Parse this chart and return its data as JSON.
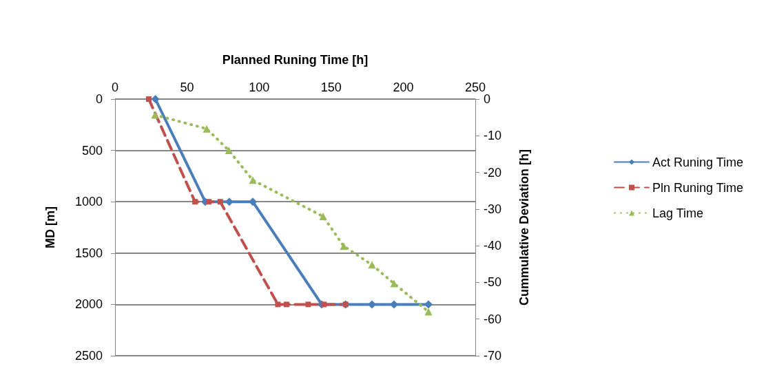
{
  "chart_data": {
    "type": "line",
    "xlabel": "Planned Runing Time [h]",
    "ylabel": "MD [m]",
    "y2label": "Cummulative Deviation [h]",
    "xlim": [
      0,
      250
    ],
    "xticks": [
      0,
      50,
      100,
      150,
      200,
      250
    ],
    "ylim": [
      2500,
      0
    ],
    "yticks": [
      0,
      500,
      1000,
      1500,
      2000,
      2500
    ],
    "y2lim": [
      -70,
      0
    ],
    "y2ticks": [
      0,
      -10,
      -20,
      -30,
      -40,
      -50,
      -60,
      -70
    ],
    "grid": "y",
    "legend": "right",
    "series": [
      {
        "name": "Act Runing Time",
        "color": "#4a7ebb",
        "marker": "diamond",
        "line_style": "solid",
        "x": [
          28,
          62.6,
          79.3,
          95.6,
          143.4,
          160,
          178.3,
          193.6,
          217.5
        ],
        "values": [
          0,
          1000,
          1000,
          1000,
          2000,
          2000,
          2000,
          2000,
          2000
        ]
      },
      {
        "name": "Pln Runing Time",
        "color": "#c0504d",
        "marker": "square",
        "line_style": "dashed",
        "x": [
          23.4,
          55.5,
          65,
          73,
          113,
          119,
          134,
          145,
          160
        ],
        "values": [
          0,
          1000,
          1000,
          1000,
          2000,
          2000,
          2000,
          2000,
          2000
        ]
      },
      {
        "name": "Lag Time",
        "color": "#9bbb59",
        "marker": "triangle",
        "line_style": "dotted",
        "axis": "y2",
        "x": [
          27.7,
          63.6,
          79,
          95.6,
          144.4,
          158.7,
          178.3,
          193.6,
          217.5
        ],
        "values": [
          -4.3,
          -8.1,
          -14,
          -22.1,
          -32,
          -40.1,
          -45.2,
          -50.3,
          -58
        ]
      }
    ]
  }
}
